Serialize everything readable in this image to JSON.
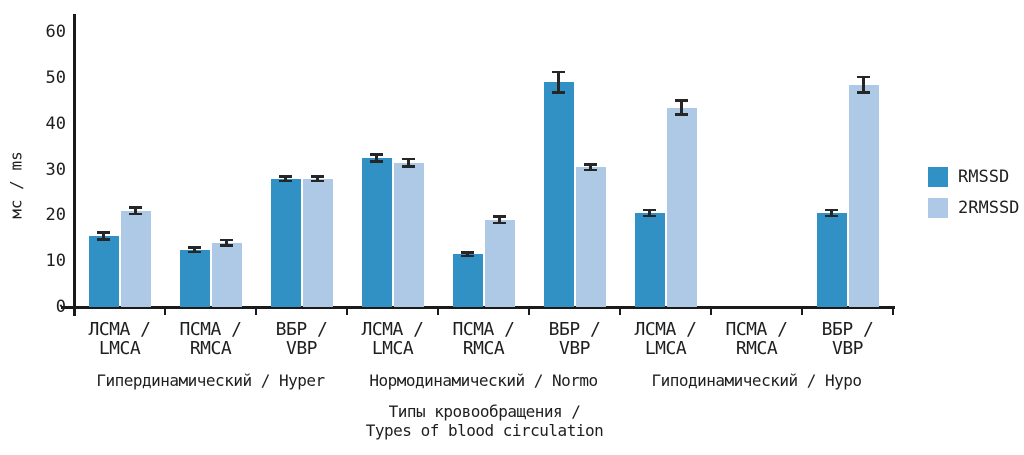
{
  "chart_data": {
    "type": "bar",
    "title": "",
    "ylabel": "мс / ms",
    "xlabel": "Типы кровообращения /\nTypes of blood circulation",
    "ylim": [
      0,
      60
    ],
    "yticks": [
      0,
      10,
      20,
      30,
      40,
      50,
      60
    ],
    "grid": false,
    "legend_position": "right",
    "axis_color": "#1a1a1a",
    "error_bar_color": "#262626",
    "group_labels": [
      "Гипердинамический / Hyper",
      "Нормодинамический / Normo",
      "Гиподинамический / Hypo"
    ],
    "categories": [
      "ЛСМА /\nLMCA",
      "ПСМА /\nRMCA",
      "ВБР /\nVBP",
      "ЛСМА /\nLMCA",
      "ПСМА /\nRMCA",
      "ВБР /\nVBP",
      "ЛСМА /\nLMCA",
      "ПСМА /\nRMCA",
      "ВБР /\nVBP"
    ],
    "series": [
      {
        "name": "RMSSD",
        "color": "#3191c4",
        "values": [
          15.5,
          12.5,
          28,
          32.5,
          11.5,
          49,
          20.5,
          null,
          20.5
        ],
        "errors": [
          1.0,
          0.8,
          0.8,
          1.0,
          0.7,
          2.5,
          0.9,
          null,
          0.9
        ]
      },
      {
        "name": "2RMSSD",
        "color": "#adc9e5",
        "values": [
          21,
          14,
          28,
          31.5,
          19,
          30.5,
          43.5,
          null,
          48.5
        ],
        "errors": [
          1.0,
          0.9,
          0.8,
          1.1,
          1.0,
          0.9,
          1.8,
          null,
          2.0
        ]
      }
    ]
  }
}
